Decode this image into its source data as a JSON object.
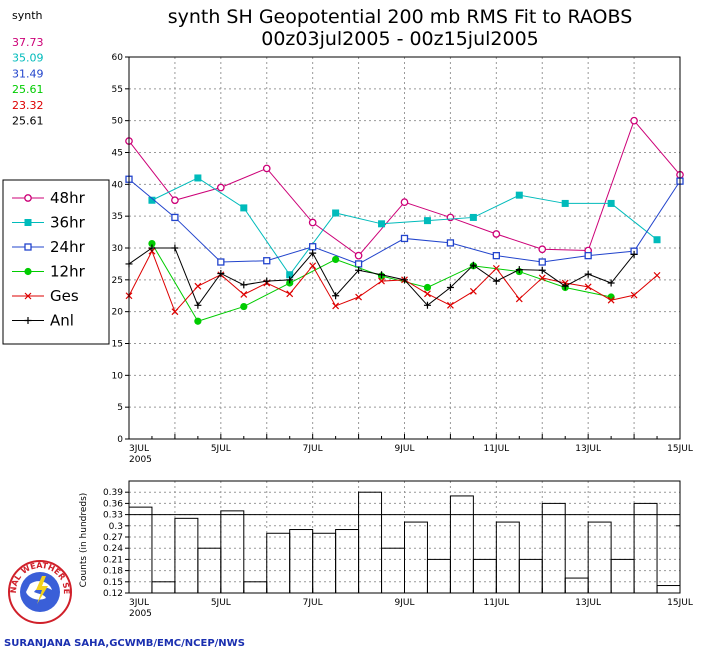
{
  "title": {
    "line1": "synth SH Geopotential 200 mb RMS Fit to RAOBS",
    "line2": "00z03jul2005 - 00z15jul2005"
  },
  "stats": {
    "label": "synth",
    "items": [
      {
        "value": "37.73",
        "color": "#cc0077"
      },
      {
        "value": "35.09",
        "color": "#00bbbb"
      },
      {
        "value": "31.49",
        "color": "#2244cc"
      },
      {
        "value": "25.61",
        "color": "#00cc00"
      },
      {
        "value": "23.32",
        "color": "#dd0000"
      },
      {
        "value": "25.61",
        "color": "#000000"
      }
    ]
  },
  "credit": "SURANJANA SAHA,GCWMB/EMC/NCEP/NWS",
  "logo": {
    "text": "NATIONAL WEATHER SERVICE"
  },
  "chart_data": [
    {
      "type": "line",
      "x_ticks": [
        {
          "x": 0,
          "label": "3JUL",
          "sub": "2005"
        },
        {
          "x": 2,
          "label": "5JUL"
        },
        {
          "x": 4,
          "label": "7JUL"
        },
        {
          "x": 6,
          "label": "9JUL"
        },
        {
          "x": 8,
          "label": "11JUL"
        },
        {
          "x": 10,
          "label": "13JUL"
        },
        {
          "x": 12,
          "label": "15JUL"
        }
      ],
      "xlim": [
        0,
        12
      ],
      "ylim": [
        0,
        60
      ],
      "y_ticks": [
        0,
        5,
        10,
        15,
        20,
        25,
        30,
        35,
        40,
        45,
        50,
        55,
        60
      ],
      "grid": true,
      "series": [
        {
          "name": "48hr",
          "color": "#cc0077",
          "marker": "open-circle",
          "x": [
            0,
            1,
            2,
            3,
            4,
            5,
            6,
            7,
            8,
            9,
            10,
            11,
            12
          ],
          "y": [
            46.8,
            37.5,
            39.5,
            42.5,
            34.0,
            28.8,
            37.2,
            34.8,
            32.2,
            29.8,
            29.6,
            50.0,
            41.5
          ]
        },
        {
          "name": "36hr",
          "color": "#00bbbb",
          "marker": "filled-square",
          "x": [
            0.5,
            1.5,
            2.5,
            3.5,
            4.5,
            5.5,
            6.5,
            7.5,
            8.5,
            9.5,
            10.5,
            11.5
          ],
          "y": [
            37.5,
            41.0,
            36.3,
            25.8,
            35.5,
            33.8,
            34.3,
            34.8,
            38.3,
            37.0,
            37.0,
            31.3
          ]
        },
        {
          "name": "24hr",
          "color": "#2244cc",
          "marker": "open-square",
          "x": [
            0,
            1,
            2,
            3,
            4,
            5,
            6,
            7,
            8,
            9,
            10,
            11,
            12
          ],
          "y": [
            40.8,
            34.8,
            27.8,
            28.0,
            30.2,
            27.5,
            31.5,
            30.8,
            28.8,
            27.8,
            28.8,
            29.5,
            40.5
          ]
        },
        {
          "name": "12hr",
          "color": "#00cc00",
          "marker": "filled-circle",
          "x": [
            0.5,
            1.5,
            2.5,
            3.5,
            4.5,
            5.5,
            6.5,
            7.5,
            8.5,
            9.5,
            10.5,
            11.5
          ],
          "y": [
            30.7,
            18.5,
            20.8,
            24.5,
            28.2,
            25.6,
            23.8,
            27.2,
            26.3,
            23.8,
            22.3,
            null
          ]
        },
        {
          "name": "Ges",
          "color": "#dd0000",
          "marker": "x",
          "x": [
            0,
            0.5,
            1,
            1.5,
            2,
            2.5,
            3,
            3.5,
            4,
            4.5,
            5,
            5.5,
            6,
            6.5,
            7,
            7.5,
            8,
            8.5,
            9,
            9.5,
            10,
            10.5,
            11,
            11.5,
            12
          ],
          "y": [
            22.5,
            29.5,
            20.0,
            24.0,
            25.8,
            22.7,
            24.5,
            22.8,
            27.2,
            20.9,
            22.3,
            24.8,
            25.0,
            22.8,
            21.0,
            23.2,
            26.8,
            22.0,
            25.3,
            24.5,
            23.9,
            21.8,
            22.6,
            25.7,
            null
          ]
        },
        {
          "name": "Anl",
          "color": "#000000",
          "marker": "plus",
          "x": [
            0,
            0.5,
            1,
            1.5,
            2,
            2.5,
            3,
            3.5,
            4,
            4.5,
            5,
            5.5,
            6,
            6.5,
            7,
            7.5,
            8,
            8.5,
            9,
            9.5,
            10,
            10.5,
            11,
            11.5,
            12
          ],
          "y": [
            27.5,
            30.0,
            30.0,
            21.0,
            26.0,
            24.2,
            24.8,
            25.0,
            29.2,
            22.5,
            26.5,
            25.8,
            25.0,
            21.0,
            23.8,
            27.3,
            24.8,
            26.6,
            26.5,
            24.0,
            25.9,
            24.5,
            29.0,
            null,
            null
          ]
        }
      ]
    },
    {
      "type": "bar",
      "ylabel": "Counts (in hundreds)",
      "ylim": [
        0.12,
        0.42
      ],
      "y_ticks": [
        0.12,
        0.15,
        0.18,
        0.21,
        0.24,
        0.27,
        0.3,
        0.33,
        0.36,
        0.39
      ],
      "reference_line": 0.33,
      "x": [
        0,
        0.5,
        1,
        1.5,
        2,
        2.5,
        3,
        3.5,
        4,
        4.5,
        5,
        5.5,
        6,
        6.5,
        7,
        7.5,
        8,
        8.5,
        9,
        9.5,
        10,
        10.5,
        11,
        11.5
      ],
      "values": [
        0.35,
        0.15,
        0.32,
        0.24,
        0.34,
        0.15,
        0.28,
        0.29,
        0.28,
        0.29,
        0.39,
        0.24,
        0.31,
        0.21,
        0.38,
        0.21,
        0.31,
        0.21,
        0.36,
        0.16,
        0.31,
        0.21,
        0.36,
        0.14
      ],
      "end_value": 0.3
    }
  ]
}
